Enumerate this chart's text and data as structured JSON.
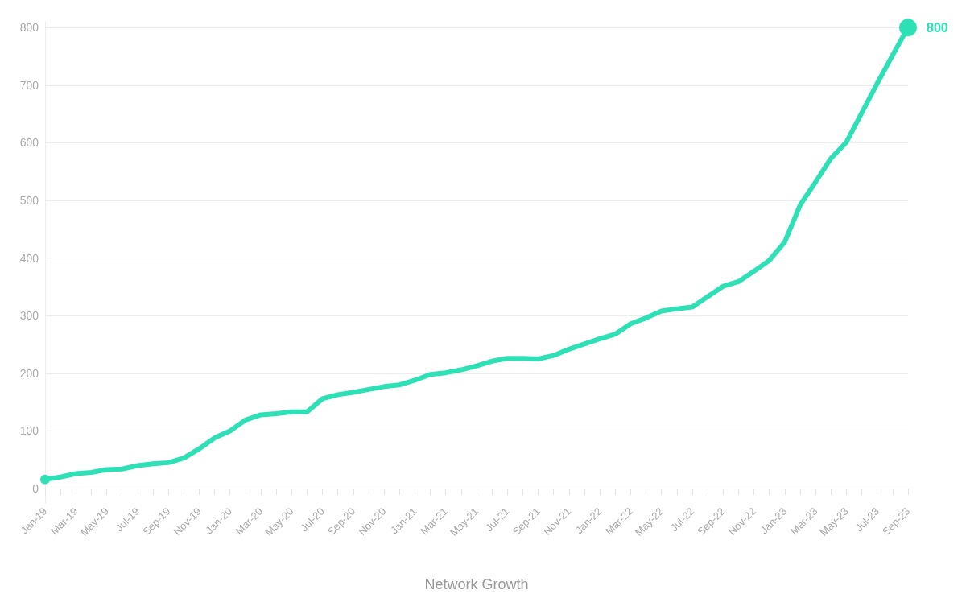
{
  "chart_data": {
    "type": "line",
    "xlabel": "Network Growth",
    "categories": [
      "Jan-19",
      null,
      "Mar-19",
      null,
      "May-19",
      null,
      "Jul-19",
      null,
      "Sep-19",
      null,
      "Nov-19",
      null,
      "Jan-20",
      null,
      "Mar-20",
      null,
      "May-20",
      null,
      "Jul-20",
      null,
      "Sep-20",
      null,
      "Nov-20",
      null,
      "Jan-21",
      null,
      "Mar-21",
      null,
      "May-21",
      null,
      "Jul-21",
      null,
      "Sep-21",
      null,
      "Nov-21",
      null,
      "Jan-22",
      null,
      "Mar-22",
      null,
      "May-22",
      null,
      "Jul-22",
      null,
      "Sep-22",
      null,
      "Nov-22",
      null,
      "Jan-23",
      null,
      "Mar-23",
      null,
      "May-23",
      null,
      "Jul-23",
      null,
      "Sep-23"
    ],
    "series": [
      {
        "color": "#2ee0b5",
        "values": [
          16,
          20,
          26,
          28,
          33,
          34,
          40,
          43,
          45,
          53,
          69,
          88,
          100,
          119,
          128,
          130,
          133,
          133,
          156,
          163,
          167,
          172,
          177,
          180,
          188,
          198,
          201,
          206,
          213,
          221,
          226,
          226,
          225,
          231,
          242,
          251,
          260,
          268,
          286,
          296,
          308,
          312,
          315,
          333,
          351,
          359,
          377,
          396,
          428,
          492,
          532,
          573,
          601,
          652,
          703,
          752,
          800
        ],
        "value_labels": [
          null,
          null,
          null,
          null,
          null,
          null,
          null,
          null,
          null,
          null,
          null,
          null,
          null,
          null,
          null,
          null,
          null,
          null,
          null,
          null,
          null,
          null,
          null,
          null,
          null,
          null,
          null,
          null,
          null,
          null,
          null,
          null,
          null,
          null,
          null,
          null,
          null,
          null,
          null,
          null,
          null,
          null,
          null,
          null,
          null,
          null,
          null,
          null,
          null,
          null,
          null,
          null,
          null,
          null,
          null,
          null,
          "800"
        ]
      }
    ],
    "ylim": [
      -25,
      810
    ],
    "yticks": [
      0,
      100,
      200,
      300,
      400,
      500,
      600,
      700,
      800
    ],
    "grid": "y",
    "line_style": "solid"
  }
}
